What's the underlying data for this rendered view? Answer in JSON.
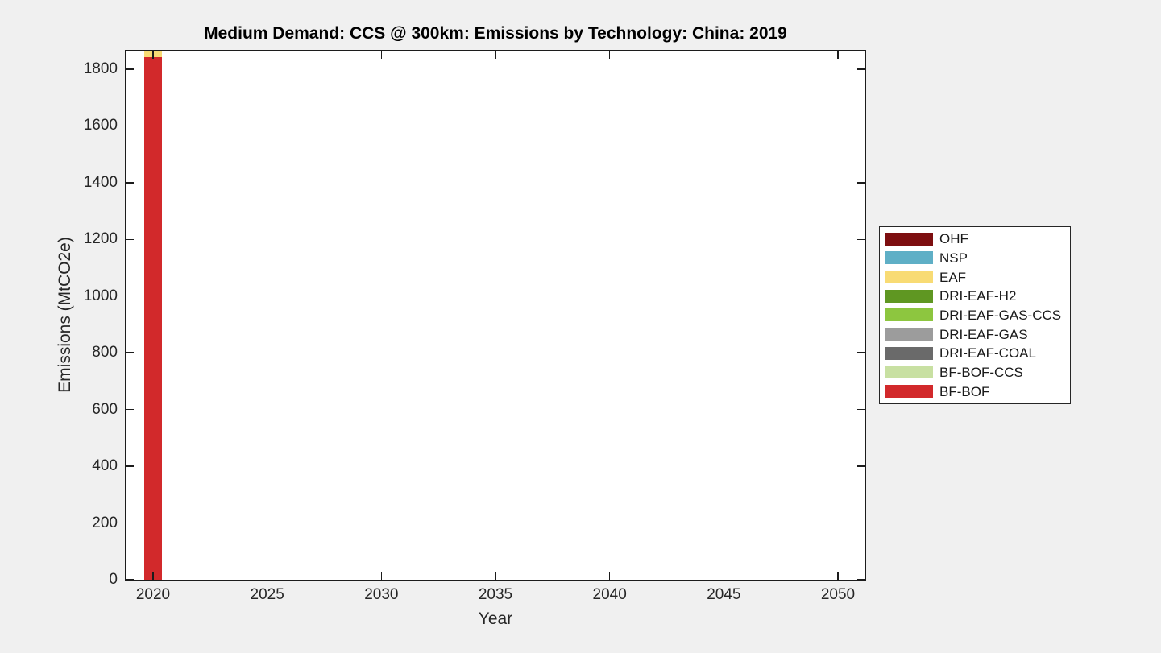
{
  "figure": {
    "background_color": "#f0f0f0",
    "plot_background": "#ffffff",
    "axis_color": "#262626"
  },
  "chart_data": {
    "type": "bar",
    "stacked": true,
    "title": "Medium Demand: CCS @ 300km: Emissions by Technology: China: 2019",
    "xlabel": "Year",
    "ylabel": "Emissions (MtCO2e)",
    "xlim": [
      2018.8,
      2051.2
    ],
    "ylim": [
      0,
      1865
    ],
    "xticks": [
      2020,
      2025,
      2030,
      2035,
      2040,
      2045,
      2050
    ],
    "yticks": [
      0,
      200,
      400,
      600,
      800,
      1000,
      1200,
      1400,
      1600,
      1800
    ],
    "grid": false,
    "bar_width_years": 0.8,
    "categories": [
      2020
    ],
    "series": [
      {
        "name": "BF-BOF",
        "color": "#d2292b",
        "values": [
          1842
        ]
      },
      {
        "name": "BF-BOF-CCS",
        "color": "#c8e0a2",
        "values": [
          0
        ]
      },
      {
        "name": "DRI-EAF-COAL",
        "color": "#6a6a6a",
        "values": [
          0
        ]
      },
      {
        "name": "DRI-EAF-GAS",
        "color": "#9c9c9c",
        "values": [
          0
        ]
      },
      {
        "name": "DRI-EAF-GAS-CCS",
        "color": "#8dc63f",
        "values": [
          0
        ]
      },
      {
        "name": "DRI-EAF-H2",
        "color": "#5f9722",
        "values": [
          0
        ]
      },
      {
        "name": "EAF",
        "color": "#f8db74",
        "values": [
          23
        ]
      },
      {
        "name": "NSP",
        "color": "#5fafc6",
        "values": [
          0
        ]
      },
      {
        "name": "OHF",
        "color": "#7d0e10",
        "values": [
          0
        ]
      }
    ],
    "legend": {
      "position": "right-outside",
      "entries": [
        {
          "label": "OHF",
          "color": "#7d0e10"
        },
        {
          "label": "NSP",
          "color": "#5fafc6"
        },
        {
          "label": "EAF",
          "color": "#f8db74"
        },
        {
          "label": "DRI-EAF-H2",
          "color": "#5f9722"
        },
        {
          "label": "DRI-EAF-GAS-CCS",
          "color": "#8dc63f"
        },
        {
          "label": "DRI-EAF-GAS",
          "color": "#9c9c9c"
        },
        {
          "label": "DRI-EAF-COAL",
          "color": "#6a6a6a"
        },
        {
          "label": "BF-BOF-CCS",
          "color": "#c8e0a2"
        },
        {
          "label": "BF-BOF",
          "color": "#d2292b"
        }
      ]
    }
  }
}
